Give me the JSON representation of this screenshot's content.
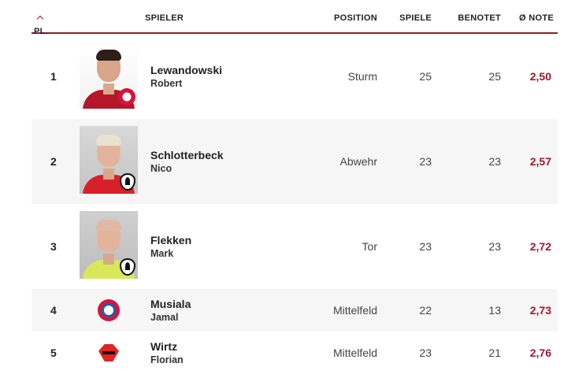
{
  "header": {
    "rank": "PL.",
    "player": "SPIELER",
    "position": "POSITION",
    "games": "SPIELE",
    "rated": "BENOTET",
    "grade": "Ø NOTE"
  },
  "colors": {
    "accent": "#8c1c2c",
    "grade": "#a0182c"
  },
  "rows": [
    {
      "rank": "1",
      "last_name": "Lewandowski",
      "first_name": "Robert",
      "position": "Sturm",
      "games": "25",
      "rated": "25",
      "grade": "2,50",
      "image": "player-photo",
      "club_icon": "bayern-munich-crest-icon"
    },
    {
      "rank": "2",
      "last_name": "Schlotterbeck",
      "first_name": "Nico",
      "position": "Abwehr",
      "games": "23",
      "rated": "23",
      "grade": "2,57",
      "image": "player-photo",
      "club_icon": "sc-freiburg-crest-icon"
    },
    {
      "rank": "3",
      "last_name": "Flekken",
      "first_name": "Mark",
      "position": "Tor",
      "games": "23",
      "rated": "23",
      "grade": "2,72",
      "image": "player-photo",
      "club_icon": "sc-freiburg-crest-icon"
    },
    {
      "rank": "4",
      "last_name": "Musiala",
      "first_name": "Jamal",
      "position": "Mittelfeld",
      "games": "22",
      "rated": "13",
      "grade": "2,73",
      "club_icon": "bayern-munich-crest-icon"
    },
    {
      "rank": "5",
      "last_name": "Wirtz",
      "first_name": "Florian",
      "position": "Mittelfeld",
      "games": "23",
      "rated": "21",
      "grade": "2,76",
      "club_icon": "bayer-leverkusen-crest-icon"
    }
  ]
}
